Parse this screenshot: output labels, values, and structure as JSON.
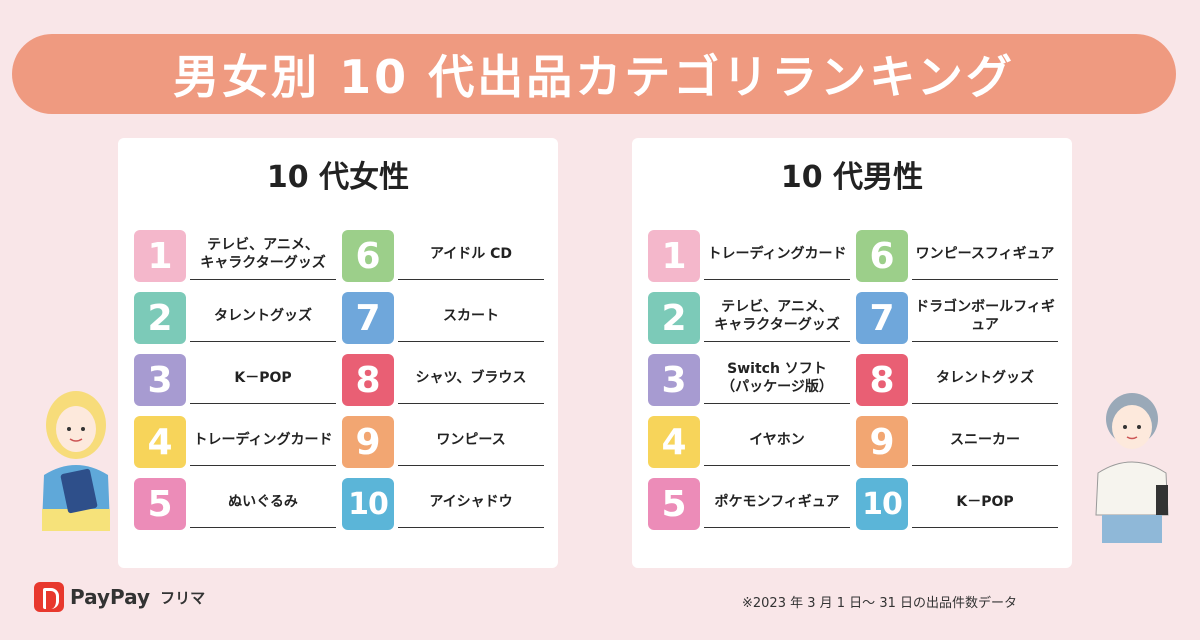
{
  "title": "男女別 10 代出品カテゴリランキング",
  "female": {
    "heading": "10 代女性",
    "items": [
      {
        "rank": "1",
        "label": "テレビ、アニメ、\nキャラクターグッズ"
      },
      {
        "rank": "2",
        "label": "タレントグッズ"
      },
      {
        "rank": "3",
        "label": "K－POP"
      },
      {
        "rank": "4",
        "label": "トレーディングカード"
      },
      {
        "rank": "5",
        "label": "ぬいぐるみ"
      },
      {
        "rank": "6",
        "label": "アイドル CD"
      },
      {
        "rank": "7",
        "label": "スカート"
      },
      {
        "rank": "8",
        "label": "シャツ、ブラウス"
      },
      {
        "rank": "9",
        "label": "ワンピース"
      },
      {
        "rank": "10",
        "label": "アイシャドウ"
      }
    ]
  },
  "male": {
    "heading": "10 代男性",
    "items": [
      {
        "rank": "1",
        "label": "トレーディングカード"
      },
      {
        "rank": "2",
        "label": "テレビ、アニメ、\nキャラクターグッズ"
      },
      {
        "rank": "3",
        "label": "Switch ソフト\n（パッケージ版）"
      },
      {
        "rank": "4",
        "label": "イヤホン"
      },
      {
        "rank": "5",
        "label": "ポケモンフィギュア"
      },
      {
        "rank": "6",
        "label": "ワンピースフィギュア"
      },
      {
        "rank": "7",
        "label": "ドラゴンボールフィギュア"
      },
      {
        "rank": "8",
        "label": "タレントグッズ"
      },
      {
        "rank": "9",
        "label": "スニーカー"
      },
      {
        "rank": "10",
        "label": "K－POP"
      }
    ]
  },
  "logo": {
    "brand": "PayPay",
    "sub": "フリマ"
  },
  "footnote": "※2023 年 3 月 1 日〜 31 日の出品件数データ"
}
